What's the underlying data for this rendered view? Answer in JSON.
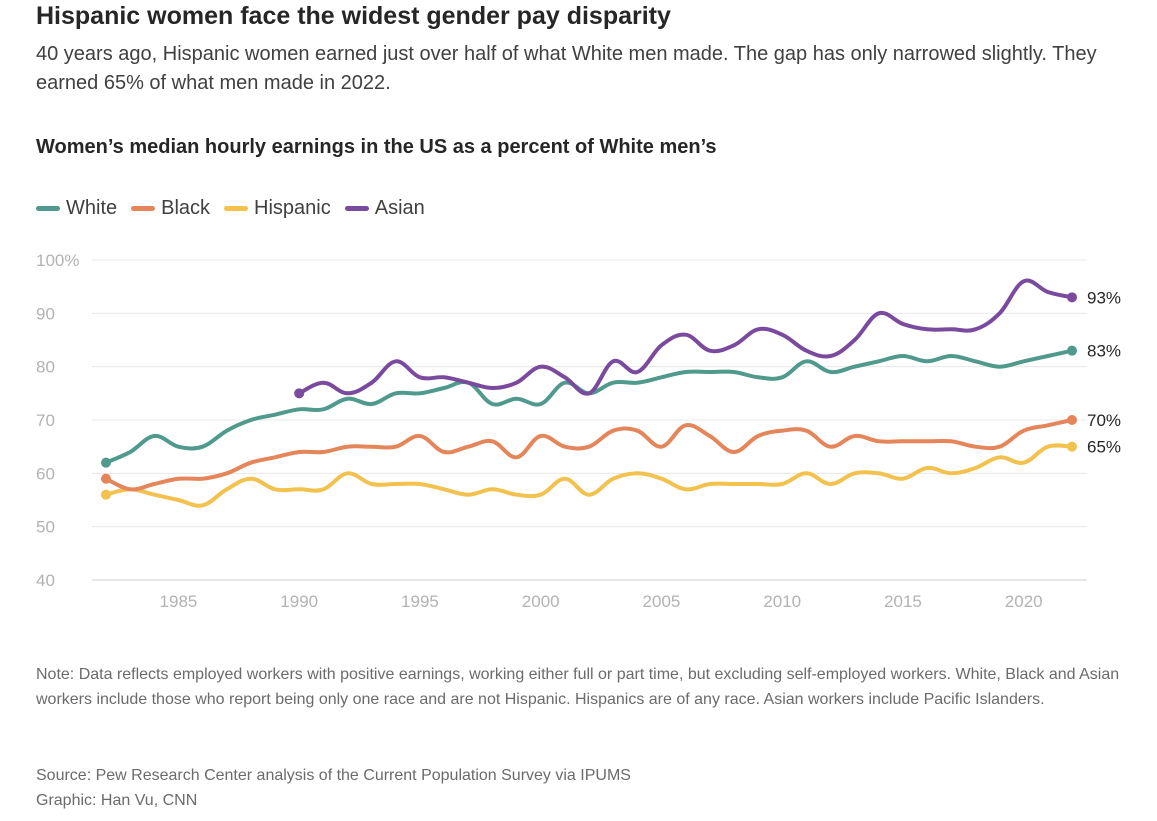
{
  "header": {
    "title": "Hispanic women face the widest gender pay disparity",
    "subtitle": "40 years ago, Hispanic women earned just over half of what White men made. The gap has only narrowed slightly. They earned 65% of what men made in 2022."
  },
  "chart_title": "Women’s median hourly earnings in the US as a percent of White men’s",
  "chart_data": {
    "type": "line",
    "title": "Women’s median hourly earnings in the US as a percent of White men’s",
    "xlabel": "",
    "ylabel": "",
    "xlim": [
      1982,
      2022
    ],
    "ylim": [
      40,
      100
    ],
    "x_ticks": [
      1985,
      1990,
      1995,
      2000,
      2005,
      2010,
      2015,
      2020
    ],
    "x_tick_labels": [
      "1985",
      "1990",
      "1995",
      "2000",
      "2005",
      "2010",
      "2015",
      "2020"
    ],
    "y_ticks": [
      40,
      50,
      60,
      70,
      80,
      90,
      100
    ],
    "y_tick_labels": [
      "40",
      "50",
      "60",
      "70",
      "80",
      "90",
      "100%"
    ],
    "grid": true,
    "legend_position": "top-left",
    "series": [
      {
        "name": "White",
        "color": "#4f9a8c",
        "end_label": "83%",
        "x": [
          1982,
          1983,
          1984,
          1985,
          1986,
          1987,
          1988,
          1989,
          1990,
          1991,
          1992,
          1993,
          1994,
          1995,
          1996,
          1997,
          1998,
          1999,
          2000,
          2001,
          2002,
          2003,
          2004,
          2005,
          2006,
          2007,
          2008,
          2009,
          2010,
          2011,
          2012,
          2013,
          2014,
          2015,
          2016,
          2017,
          2018,
          2019,
          2020,
          2021,
          2022
        ],
        "values": [
          62,
          64,
          67,
          65,
          65,
          68,
          70,
          71,
          72,
          72,
          74,
          73,
          75,
          75,
          76,
          77,
          73,
          74,
          73,
          77,
          75,
          77,
          77,
          78,
          79,
          79,
          79,
          78,
          78,
          81,
          79,
          80,
          81,
          82,
          81,
          82,
          81,
          80,
          81,
          82,
          83
        ]
      },
      {
        "name": "Black",
        "color": "#e5855a",
        "end_label": "70%",
        "x": [
          1982,
          1983,
          1984,
          1985,
          1986,
          1987,
          1988,
          1989,
          1990,
          1991,
          1992,
          1993,
          1994,
          1995,
          1996,
          1997,
          1998,
          1999,
          2000,
          2001,
          2002,
          2003,
          2004,
          2005,
          2006,
          2007,
          2008,
          2009,
          2010,
          2011,
          2012,
          2013,
          2014,
          2015,
          2016,
          2017,
          2018,
          2019,
          2020,
          2021,
          2022
        ],
        "values": [
          59,
          57,
          58,
          59,
          59,
          60,
          62,
          63,
          64,
          64,
          65,
          65,
          65,
          67,
          64,
          65,
          66,
          63,
          67,
          65,
          65,
          68,
          68,
          65,
          69,
          67,
          64,
          67,
          68,
          68,
          65,
          67,
          66,
          66,
          66,
          66,
          65,
          65,
          68,
          69,
          70
        ]
      },
      {
        "name": "Hispanic",
        "color": "#f2c14e",
        "end_label": "65%",
        "x": [
          1982,
          1983,
          1984,
          1985,
          1986,
          1987,
          1988,
          1989,
          1990,
          1991,
          1992,
          1993,
          1994,
          1995,
          1996,
          1997,
          1998,
          1999,
          2000,
          2001,
          2002,
          2003,
          2004,
          2005,
          2006,
          2007,
          2008,
          2009,
          2010,
          2011,
          2012,
          2013,
          2014,
          2015,
          2016,
          2017,
          2018,
          2019,
          2020,
          2021,
          2022
        ],
        "values": [
          56,
          57,
          56,
          55,
          54,
          57,
          59,
          57,
          57,
          57,
          60,
          58,
          58,
          58,
          57,
          56,
          57,
          56,
          56,
          59,
          56,
          59,
          60,
          59,
          57,
          58,
          58,
          58,
          58,
          60,
          58,
          60,
          60,
          59,
          61,
          60,
          61,
          63,
          62,
          65,
          65
        ]
      },
      {
        "name": "Asian",
        "color": "#7a4a9e",
        "end_label": "93%",
        "x": [
          1990,
          1991,
          1992,
          1993,
          1994,
          1995,
          1996,
          1997,
          1998,
          1999,
          2000,
          2001,
          2002,
          2003,
          2004,
          2005,
          2006,
          2007,
          2008,
          2009,
          2010,
          2011,
          2012,
          2013,
          2014,
          2015,
          2016,
          2017,
          2018,
          2019,
          2020,
          2021,
          2022
        ],
        "values": [
          75,
          77,
          75,
          77,
          81,
          78,
          78,
          77,
          76,
          77,
          80,
          78,
          75,
          81,
          79,
          84,
          86,
          83,
          84,
          87,
          86,
          83,
          82,
          85,
          90,
          88,
          87,
          87,
          87,
          90,
          96,
          94,
          93
        ]
      }
    ]
  },
  "footer": {
    "note": "Note: Data reflects employed workers with positive earnings, working either full or part time, but excluding self-employed workers. White, Black and Asian workers include those who report being only one race and are not Hispanic. Hispanics are of any race. Asian workers include Pacific Islanders.",
    "source": "Source: Pew Research Center analysis of the Current Population Survey via IPUMS",
    "credit": "Graphic: Han Vu, CNN"
  }
}
